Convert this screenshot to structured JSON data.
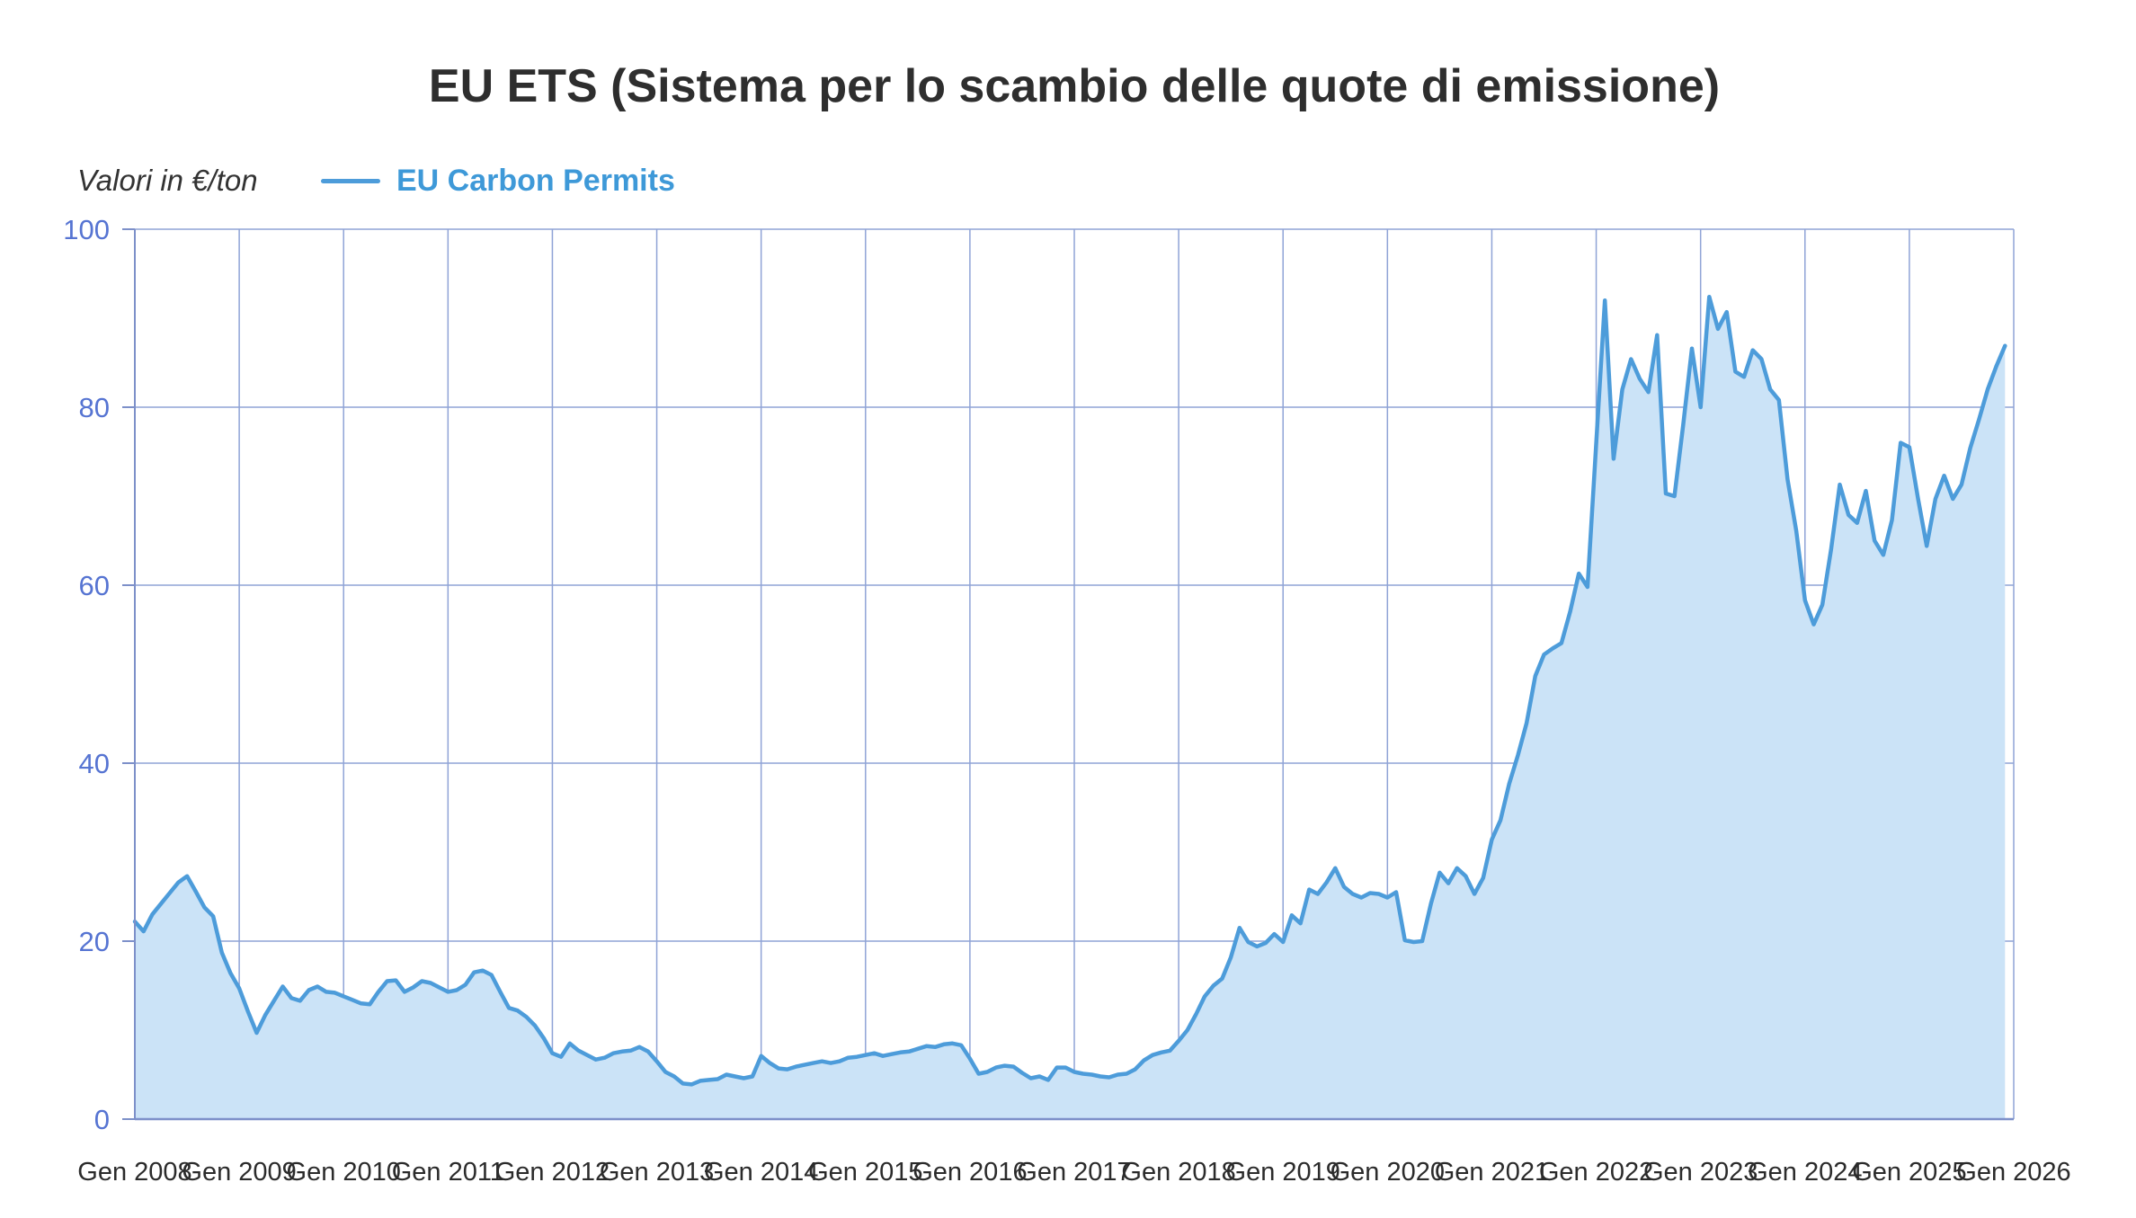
{
  "header": {
    "title": "EU ETS (Sistema per lo scambio delle quote di emissione)"
  },
  "subtitle": "Valori in €/ton",
  "legend": {
    "label": "EU Carbon Permits"
  },
  "colors": {
    "line": "#4d9cda",
    "fill": "#cbe3f7",
    "grid": "#8fa3d6",
    "axis": "#7d90c9",
    "y_label": "#5674d2",
    "x_label": "#2b2b2b",
    "title_text": "#2e2e2e",
    "legend_text": "#3e99d8",
    "background": "#ffffff"
  },
  "chart_data": {
    "type": "area",
    "title": "EU ETS (Sistema per lo scambio delle quote di emissione)",
    "subtitle": "Valori in €/ton",
    "ylabel": "€/ton",
    "xlabel": "",
    "ylim": [
      0,
      100
    ],
    "y_ticks": [
      0,
      20,
      40,
      60,
      80,
      100
    ],
    "grid": true,
    "legend_position": "top-left",
    "x_tick_labels": [
      "Gen 2008",
      "Gen 2009",
      "Gen 2010",
      "Gen 2011",
      "Gen 2012",
      "Gen 2013",
      "Gen 2014",
      "Gen 2015",
      "Gen 2016",
      "Gen 2017",
      "Gen 2018",
      "Gen 2019",
      "Gen 2020",
      "Gen 2021",
      "Gen 2022",
      "Gen 2023",
      "Gen 2024",
      "Gen 2025",
      "Gen 2026"
    ],
    "series": [
      {
        "name": "EU Carbon Permits",
        "frequency": "monthly",
        "start": "Gen 2008",
        "end": "Dic 2025",
        "values": [
          22.2,
          21.1,
          23.0,
          24.2,
          25.4,
          26.6,
          27.3,
          25.6,
          23.8,
          22.8,
          18.7,
          16.4,
          14.7,
          12.1,
          9.7,
          11.7,
          13.3,
          14.9,
          13.6,
          13.3,
          14.5,
          14.9,
          14.3,
          14.2,
          13.8,
          13.4,
          13.0,
          12.9,
          14.3,
          15.5,
          15.6,
          14.3,
          14.8,
          15.5,
          15.3,
          14.8,
          14.3,
          14.5,
          15.1,
          16.5,
          16.7,
          16.2,
          14.3,
          12.5,
          12.2,
          11.5,
          10.5,
          9.1,
          7.4,
          7.0,
          8.5,
          7.7,
          7.2,
          6.7,
          6.9,
          7.4,
          7.6,
          7.7,
          8.1,
          7.6,
          6.5,
          5.3,
          4.8,
          4.0,
          3.9,
          4.3,
          4.4,
          4.5,
          5.0,
          4.8,
          4.6,
          4.8,
          7.1,
          6.3,
          5.7,
          5.6,
          5.9,
          6.1,
          6.3,
          6.5,
          6.3,
          6.5,
          6.9,
          7.0,
          7.2,
          7.4,
          7.1,
          7.3,
          7.5,
          7.6,
          7.9,
          8.2,
          8.1,
          8.4,
          8.5,
          8.3,
          6.8,
          5.1,
          5.3,
          5.8,
          6.0,
          5.9,
          5.2,
          4.6,
          4.8,
          4.4,
          5.8,
          5.8,
          5.3,
          5.1,
          5.0,
          4.8,
          4.7,
          5.0,
          5.1,
          5.6,
          6.6,
          7.2,
          7.5,
          7.7,
          8.8,
          10.0,
          11.8,
          13.8,
          15.0,
          15.8,
          18.2,
          21.5,
          19.9,
          19.4,
          19.8,
          20.8,
          19.9,
          22.9,
          22.0,
          25.8,
          25.3,
          26.6,
          28.2,
          26.1,
          25.3,
          24.9,
          25.4,
          25.3,
          24.9,
          25.5,
          20.1,
          19.9,
          20.0,
          24.2,
          27.7,
          26.5,
          28.2,
          27.3,
          25.3,
          27.1,
          31.4,
          33.6,
          37.7,
          40.9,
          44.5,
          49.8,
          52.2,
          52.9,
          53.5,
          57.0,
          61.3,
          59.8,
          76.0,
          92.0,
          74.2,
          82.0,
          85.4,
          83.2,
          81.7,
          88.1,
          70.3,
          70.0,
          78.0,
          86.6,
          80.0,
          92.4,
          88.8,
          90.7,
          84.0,
          83.4,
          86.4,
          85.4,
          82.0,
          80.8,
          71.9,
          66.1,
          58.3,
          55.6,
          57.8,
          64.0,
          71.3,
          67.9,
          67.0,
          70.6,
          65.0,
          63.4,
          67.3,
          76.0,
          75.5,
          69.7,
          64.4,
          69.7,
          72.3,
          69.7,
          71.3,
          75.4,
          78.6,
          82.0,
          84.6,
          86.9
        ]
      }
    ]
  },
  "layout_values": {
    "y_axis_max_label": "100",
    "y_axis_min_label": "0"
  }
}
